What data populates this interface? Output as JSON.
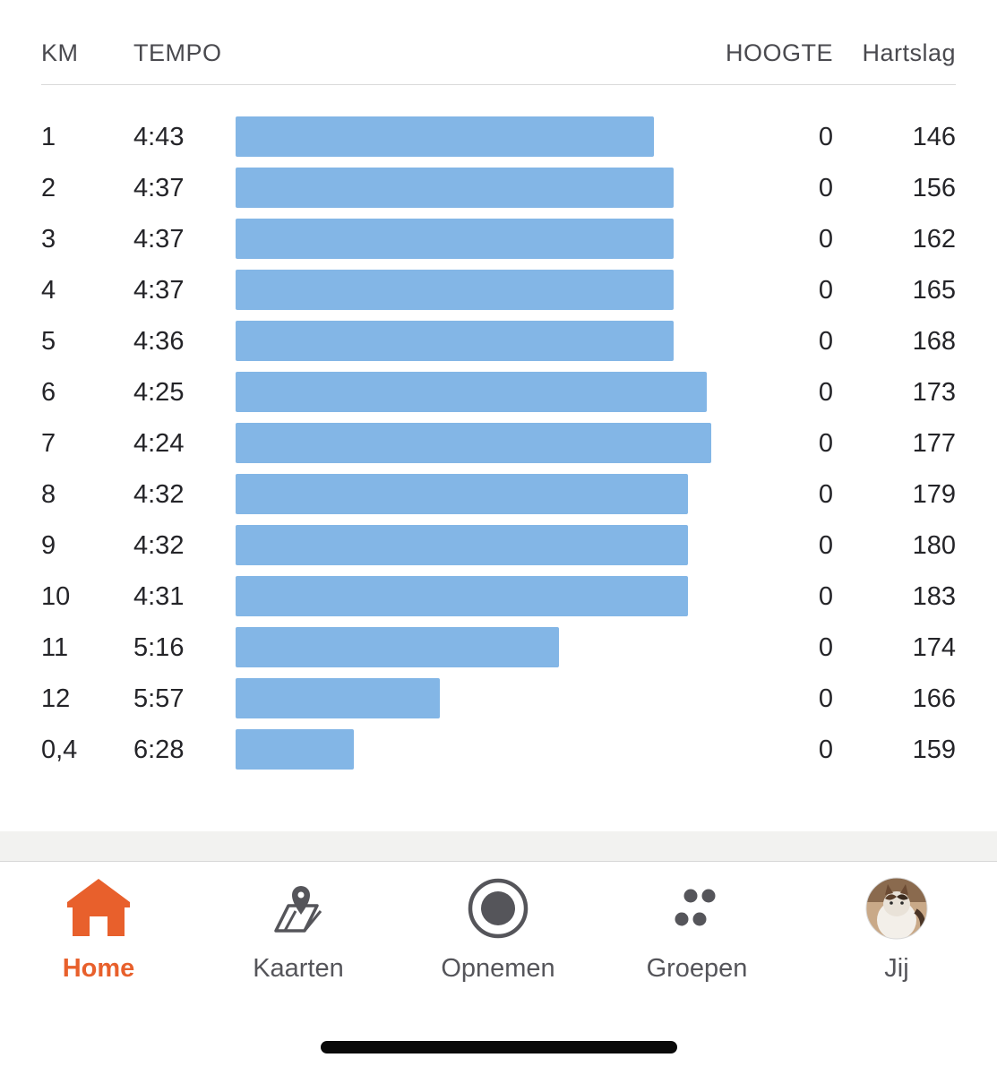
{
  "header": {
    "km": "KM",
    "tempo": "TEMPO",
    "hoogte": "HOOGTE",
    "hartslag": "Hartslag"
  },
  "splits": [
    {
      "km": "1",
      "tempo": "4:43",
      "hoogte": "0",
      "hartslag": "146",
      "bar_fraction": 0.88
    },
    {
      "km": "2",
      "tempo": "4:37",
      "hoogte": "0",
      "hartslag": "156",
      "bar_fraction": 0.921
    },
    {
      "km": "3",
      "tempo": "4:37",
      "hoogte": "0",
      "hartslag": "162",
      "bar_fraction": 0.921
    },
    {
      "km": "4",
      "tempo": "4:37",
      "hoogte": "0",
      "hartslag": "165",
      "bar_fraction": 0.921
    },
    {
      "km": "5",
      "tempo": "4:36",
      "hoogte": "0",
      "hartslag": "168",
      "bar_fraction": 0.921
    },
    {
      "km": "6",
      "tempo": "4:25",
      "hoogte": "0",
      "hartslag": "173",
      "bar_fraction": 0.99
    },
    {
      "km": "7",
      "tempo": "4:24",
      "hoogte": "0",
      "hartslag": "177",
      "bar_fraction": 1.0
    },
    {
      "km": "8",
      "tempo": "4:32",
      "hoogte": "0",
      "hartslag": "179",
      "bar_fraction": 0.951
    },
    {
      "km": "9",
      "tempo": "4:32",
      "hoogte": "0",
      "hartslag": "180",
      "bar_fraction": 0.951
    },
    {
      "km": "10",
      "tempo": "4:31",
      "hoogte": "0",
      "hartslag": "183",
      "bar_fraction": 0.951
    },
    {
      "km": "11",
      "tempo": "5:16",
      "hoogte": "0",
      "hartslag": "174",
      "bar_fraction": 0.679
    },
    {
      "km": "12",
      "tempo": "5:57",
      "hoogte": "0",
      "hartslag": "166",
      "bar_fraction": 0.43
    },
    {
      "km": "0,4",
      "tempo": "6:28",
      "hoogte": "0",
      "hartslag": "159",
      "bar_fraction": 0.249
    }
  ],
  "tabbar": {
    "home": "Home",
    "kaarten": "Kaarten",
    "opnemen": "Opnemen",
    "groepen": "Groepen",
    "jij": "Jij"
  },
  "icons": {
    "home": "home-icon",
    "kaarten": "map-pin-icon",
    "opnemen": "record-icon",
    "groepen": "groups-icon",
    "jij": "avatar"
  },
  "colors": {
    "bar": "#83b6e6",
    "accent": "#e8602c",
    "tab_inactive": "#55555a"
  }
}
